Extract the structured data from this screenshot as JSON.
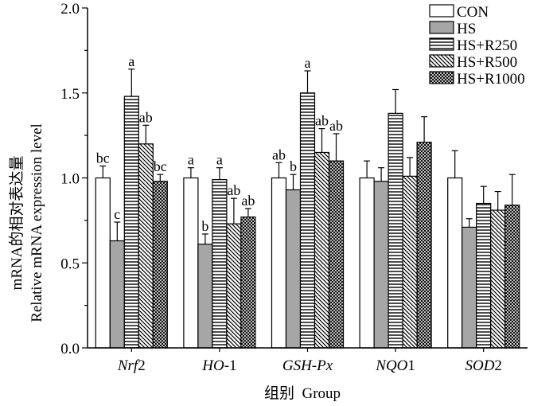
{
  "chart_data": {
    "type": "bar",
    "title": "",
    "xlabel": "组别  Group",
    "ylabel_line1": "mRNA的相对表达量",
    "ylabel_line2": "Relative mRNA expression level",
    "ylim": [
      0,
      2.0
    ],
    "yticks": [
      "0.0",
      "0.5",
      "1.0",
      "1.5",
      "2.0"
    ],
    "ytick_values": [
      0,
      0.5,
      1.0,
      1.5,
      2.0
    ],
    "categories": [
      {
        "prefix": "Nrf",
        "suffix": "2"
      },
      {
        "prefix": "HO",
        "suffix": "-1"
      },
      {
        "prefix": "GSH-Px",
        "suffix": ""
      },
      {
        "prefix": "NQO",
        "suffix": "1"
      },
      {
        "prefix": "SOD",
        "suffix": "2"
      }
    ],
    "series": [
      {
        "name": "CON",
        "pattern": "white",
        "values": [
          1.0,
          1.0,
          1.0,
          1.0,
          1.0
        ],
        "errors": [
          0.07,
          0.06,
          0.09,
          0.1,
          0.16
        ],
        "letters": [
          "bc",
          "a",
          "ab",
          "",
          ""
        ]
      },
      {
        "name": "HS",
        "pattern": "gray",
        "values": [
          0.63,
          0.61,
          0.93,
          0.98,
          0.71
        ],
        "errors": [
          0.11,
          0.06,
          0.09,
          0.08,
          0.05
        ],
        "letters": [
          "c",
          "b",
          "b",
          "",
          ""
        ]
      },
      {
        "name": "HS+R250",
        "pattern": "hlines",
        "values": [
          1.48,
          0.99,
          1.5,
          1.38,
          0.85
        ],
        "errors": [
          0.16,
          0.07,
          0.13,
          0.14,
          0.1
        ],
        "letters": [
          "a",
          "a",
          "a",
          "",
          ""
        ]
      },
      {
        "name": "HS+R500",
        "pattern": "diag",
        "values": [
          1.2,
          0.73,
          1.15,
          1.01,
          0.81
        ],
        "errors": [
          0.11,
          0.15,
          0.14,
          0.11,
          0.11
        ],
        "letters": [
          "ab",
          "ab",
          "ab",
          "",
          ""
        ]
      },
      {
        "name": "HS+R1000",
        "pattern": "cross",
        "values": [
          0.98,
          0.77,
          1.1,
          1.21,
          0.84
        ],
        "errors": [
          0.04,
          0.05,
          0.16,
          0.15,
          0.18
        ],
        "letters": [
          "bc",
          "ab",
          "ab",
          "",
          ""
        ]
      }
    ],
    "legend": "top-right",
    "grid": false
  }
}
